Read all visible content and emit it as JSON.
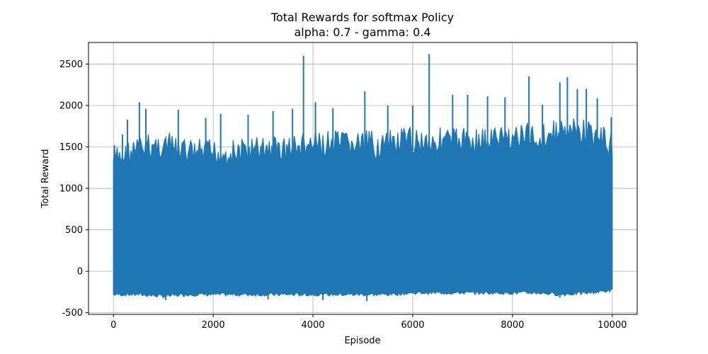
{
  "chart_data": {
    "type": "line",
    "title": "Total Rewards for softmax Policy",
    "subtitle": "alpha: 0.7 - gamma: 0.4",
    "xlabel": "Episode",
    "ylabel": "Total Reward",
    "xlim": [
      -500,
      10500
    ],
    "ylim": [
      -520,
      2760
    ],
    "xticks": [
      0,
      2000,
      4000,
      6000,
      8000,
      10000
    ],
    "yticks": [
      -500,
      0,
      500,
      1000,
      1500,
      2000,
      2500
    ],
    "grid": true,
    "line_color": "#1f77b4",
    "series": [
      {
        "name": "",
        "x_start": 0,
        "x_end": 10000,
        "range_band": [
          {
            "x": 0,
            "min": -300,
            "max": 1500
          },
          {
            "x": 500,
            "min": -300,
            "max": 1650
          },
          {
            "x": 1000,
            "min": -320,
            "max": 1700
          },
          {
            "x": 1500,
            "min": -300,
            "max": 1600
          },
          {
            "x": 2000,
            "min": -300,
            "max": 1600
          },
          {
            "x": 2500,
            "min": -300,
            "max": 1600
          },
          {
            "x": 3000,
            "min": -300,
            "max": 1650
          },
          {
            "x": 3500,
            "min": -300,
            "max": 1650
          },
          {
            "x": 4000,
            "min": -300,
            "max": 1700
          },
          {
            "x": 4500,
            "min": -300,
            "max": 1700
          },
          {
            "x": 5000,
            "min": -300,
            "max": 1700
          },
          {
            "x": 5500,
            "min": -300,
            "max": 1700
          },
          {
            "x": 6000,
            "min": -280,
            "max": 1750
          },
          {
            "x": 6500,
            "min": -280,
            "max": 1750
          },
          {
            "x": 7000,
            "min": -280,
            "max": 1750
          },
          {
            "x": 7500,
            "min": -280,
            "max": 1750
          },
          {
            "x": 8000,
            "min": -280,
            "max": 1800
          },
          {
            "x": 8500,
            "min": -280,
            "max": 1800
          },
          {
            "x": 9000,
            "min": -300,
            "max": 1850
          },
          {
            "x": 9500,
            "min": -280,
            "max": 1850
          },
          {
            "x": 10000,
            "min": -250,
            "max": 1700
          }
        ],
        "peaks": [
          {
            "x": 20,
            "y": 1520
          },
          {
            "x": 180,
            "y": 1650
          },
          {
            "x": 280,
            "y": 1830
          },
          {
            "x": 520,
            "y": 2040
          },
          {
            "x": 650,
            "y": 1960
          },
          {
            "x": 1300,
            "y": 1950
          },
          {
            "x": 1850,
            "y": 1850
          },
          {
            "x": 2150,
            "y": 1900
          },
          {
            "x": 2700,
            "y": 1890
          },
          {
            "x": 3200,
            "y": 1930
          },
          {
            "x": 3590,
            "y": 1960
          },
          {
            "x": 3810,
            "y": 2600
          },
          {
            "x": 4050,
            "y": 2040
          },
          {
            "x": 4400,
            "y": 1970
          },
          {
            "x": 5040,
            "y": 2170
          },
          {
            "x": 5500,
            "y": 2000
          },
          {
            "x": 6000,
            "y": 2000
          },
          {
            "x": 6330,
            "y": 2620
          },
          {
            "x": 6800,
            "y": 2130
          },
          {
            "x": 7100,
            "y": 2130
          },
          {
            "x": 7500,
            "y": 2110
          },
          {
            "x": 7850,
            "y": 2100
          },
          {
            "x": 8330,
            "y": 2350
          },
          {
            "x": 8600,
            "y": 2010
          },
          {
            "x": 8950,
            "y": 2280
          },
          {
            "x": 9100,
            "y": 2340
          },
          {
            "x": 9300,
            "y": 2200
          },
          {
            "x": 9480,
            "y": 2200
          },
          {
            "x": 9700,
            "y": 2090
          },
          {
            "x": 9980,
            "y": 1860
          }
        ],
        "troughs": [
          {
            "x": 1050,
            "y": -350
          },
          {
            "x": 3100,
            "y": -340
          },
          {
            "x": 4200,
            "y": -350
          },
          {
            "x": 5080,
            "y": -360
          },
          {
            "x": 8950,
            "y": -320
          }
        ]
      }
    ]
  }
}
